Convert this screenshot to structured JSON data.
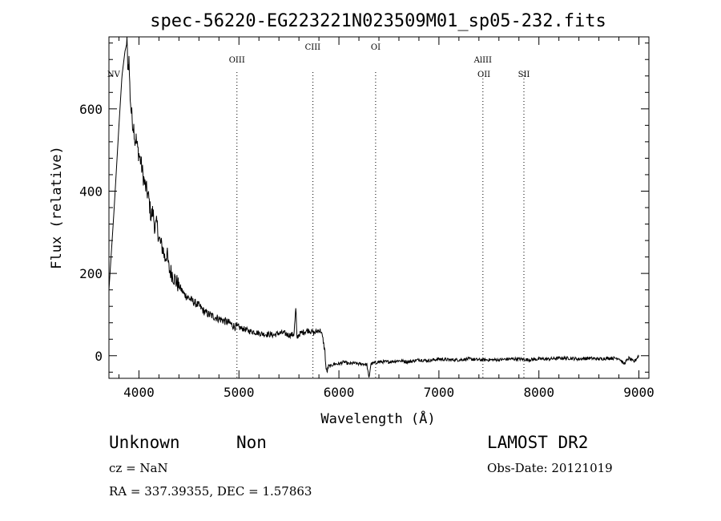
{
  "chart_data": {
    "type": "line",
    "title": "spec-56220-EG223221N023509M01_sp05-232.fits",
    "xlabel": "Wavelength (Å)",
    "ylabel": "Flux (relative)",
    "xlim": [
      3700,
      9100
    ],
    "ylim": [
      -55,
      775
    ],
    "xticks": [
      4000,
      5000,
      6000,
      7000,
      8000,
      9000
    ],
    "yticks": [
      0,
      200,
      400,
      600
    ],
    "grid": false,
    "series": [
      {
        "x": [
          3700,
          3750,
          3800,
          3830,
          3860,
          3880,
          3890,
          3900,
          3910,
          3920,
          3930,
          3940,
          3950,
          3960,
          3970,
          3985,
          4000,
          4020,
          4040,
          4060,
          4080,
          4100,
          4120,
          4140,
          4160,
          4180,
          4200,
          4220,
          4240,
          4260,
          4280,
          4300,
          4330,
          4360,
          4400,
          4450,
          4500,
          4550,
          4600,
          4650,
          4700,
          4750,
          4800,
          4850,
          4900,
          4950,
          5000,
          5050,
          5100,
          5150,
          5200,
          5250,
          5300,
          5350,
          5400,
          5450,
          5500,
          5550,
          5570,
          5578,
          5585,
          5600,
          5650,
          5700,
          5750,
          5800,
          5820,
          5840,
          5860,
          5870,
          5880,
          5890,
          5900,
          5920,
          5950,
          6000,
          6050,
          6100,
          6150,
          6200,
          6250,
          6280,
          6300,
          6320,
          6350,
          6400,
          6500,
          6600,
          6700,
          6800,
          6900,
          7000,
          7100,
          7200,
          7300,
          7400,
          7500,
          7600,
          7700,
          7800,
          7900,
          8000,
          8100,
          8200,
          8300,
          8400,
          8500,
          8600,
          8700,
          8800,
          8850,
          8900,
          8950,
          9000
        ],
        "y": [
          160,
          350,
          560,
          680,
          740,
          760,
          700,
          720,
          640,
          600,
          580,
          560,
          555,
          520,
          530,
          505,
          490,
          470,
          440,
          415,
          400,
          380,
          340,
          350,
          310,
          320,
          285,
          270,
          260,
          235,
          250,
          210,
          200,
          185,
          170,
          150,
          140,
          130,
          122,
          108,
          100,
          95,
          90,
          85,
          80,
          72,
          68,
          65,
          60,
          58,
          55,
          52,
          52,
          50,
          55,
          55,
          50,
          52,
          120,
          40,
          45,
          52,
          58,
          62,
          55,
          62,
          60,
          40,
          10,
          -30,
          -40,
          -30,
          -25,
          -25,
          -20,
          -20,
          -15,
          -20,
          -18,
          -20,
          -20,
          -22,
          -55,
          -20,
          -18,
          -15,
          -15,
          -12,
          -15,
          -10,
          -12,
          -8,
          -10,
          -10,
          -8,
          -10,
          -10,
          -10,
          -8,
          -8,
          -10,
          -8,
          -8,
          -6,
          -6,
          -8,
          -6,
          -8,
          -6,
          -6,
          -20,
          -6,
          -15,
          0
        ]
      }
    ],
    "annotations": [
      {
        "label": "NV",
        "x": 3747,
        "row": 3
      },
      {
        "label": "OIII",
        "x": 4980,
        "row": 2
      },
      {
        "label": "CIII",
        "x": 5738,
        "row": 1
      },
      {
        "label": "OI",
        "x": 6368,
        "row": 1
      },
      {
        "label": "AlIII",
        "x": 7440,
        "row": 2
      },
      {
        "label": "OII",
        "x": 7450,
        "row": 3
      },
      {
        "label": "SII",
        "x": 7850,
        "row": 3
      }
    ],
    "line_markers": [
      4980,
      5740,
      6367,
      7440,
      7850
    ]
  },
  "footer": {
    "object_class": "Unknown",
    "subclass": "Non",
    "cz": "cz = NaN",
    "coords": "RA = 337.39355, DEC =   1.57863",
    "survey": "LAMOST DR2",
    "obs_date": "Obs-Date: 20121019"
  }
}
